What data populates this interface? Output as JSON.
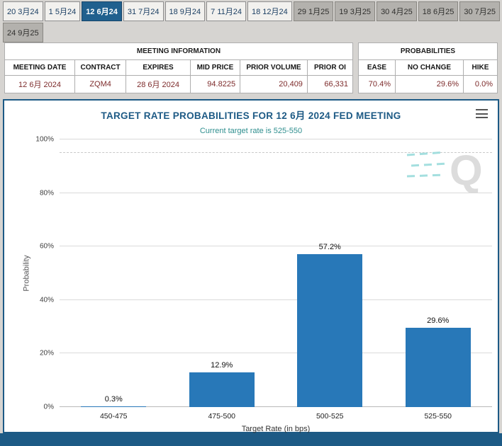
{
  "tabs": {
    "row1": [
      {
        "label": "20 3月24"
      },
      {
        "label": "1 5月24"
      },
      {
        "label": "12 6月24",
        "selected": true
      },
      {
        "label": "31 7月24"
      },
      {
        "label": "18 9月24"
      },
      {
        "label": "7 11月24"
      },
      {
        "label": "18 12月24"
      },
      {
        "label": "29 1月25"
      },
      {
        "label": "19 3月25"
      },
      {
        "label": "30 4月25"
      },
      {
        "label": "18 6月25"
      },
      {
        "label": "30 7月25"
      }
    ],
    "row2": [
      {
        "label": "24 9月25"
      }
    ]
  },
  "meeting_info": {
    "title": "MEETING INFORMATION",
    "headers": [
      "MEETING DATE",
      "CONTRACT",
      "EXPIRES",
      "MID PRICE",
      "PRIOR VOLUME",
      "PRIOR OI"
    ],
    "values": [
      "12 6月 2024",
      "ZQM4",
      "28 6月 2024",
      "94.8225",
      "20,409",
      "66,331"
    ]
  },
  "probabilities": {
    "title": "PROBABILITIES",
    "headers": [
      "EASE",
      "NO CHANGE",
      "HIKE"
    ],
    "values": [
      "70.4%",
      "29.6%",
      "0.0%"
    ]
  },
  "chart": {
    "title": "TARGET RATE PROBABILITIES FOR 12 6月 2024 FED MEETING",
    "subtitle": "Current target rate is 525-550",
    "watermark_letter": "Q"
  },
  "chart_data": {
    "type": "bar",
    "title": "TARGET RATE PROBABILITIES FOR 12 6月 2024 FED MEETING",
    "subtitle": "Current target rate is 525-550",
    "categories": [
      "450-475",
      "475-500",
      "500-525",
      "525-550"
    ],
    "values": [
      0.3,
      12.9,
      57.2,
      29.6
    ],
    "data_labels": [
      "0.3%",
      "12.9%",
      "57.2%",
      "29.6%"
    ],
    "xlabel": "Target Rate (in bps)",
    "ylabel": "Probability",
    "ylim": [
      0,
      100
    ],
    "yticks": [
      "0%",
      "20%",
      "40%",
      "60%",
      "80%",
      "100%"
    ],
    "grid": true,
    "dashed_line_pct": 95,
    "legend": "none",
    "bar_color": "#2878b8"
  },
  "colors": {
    "accent_navy": "#1d5a85",
    "subtitle_teal": "#2e8e8e",
    "bar_blue": "#2878b8",
    "table_value_text": "#7d2b2b",
    "selected_tab_bg": "#20608e",
    "page_bg": "#d6d4d1"
  }
}
